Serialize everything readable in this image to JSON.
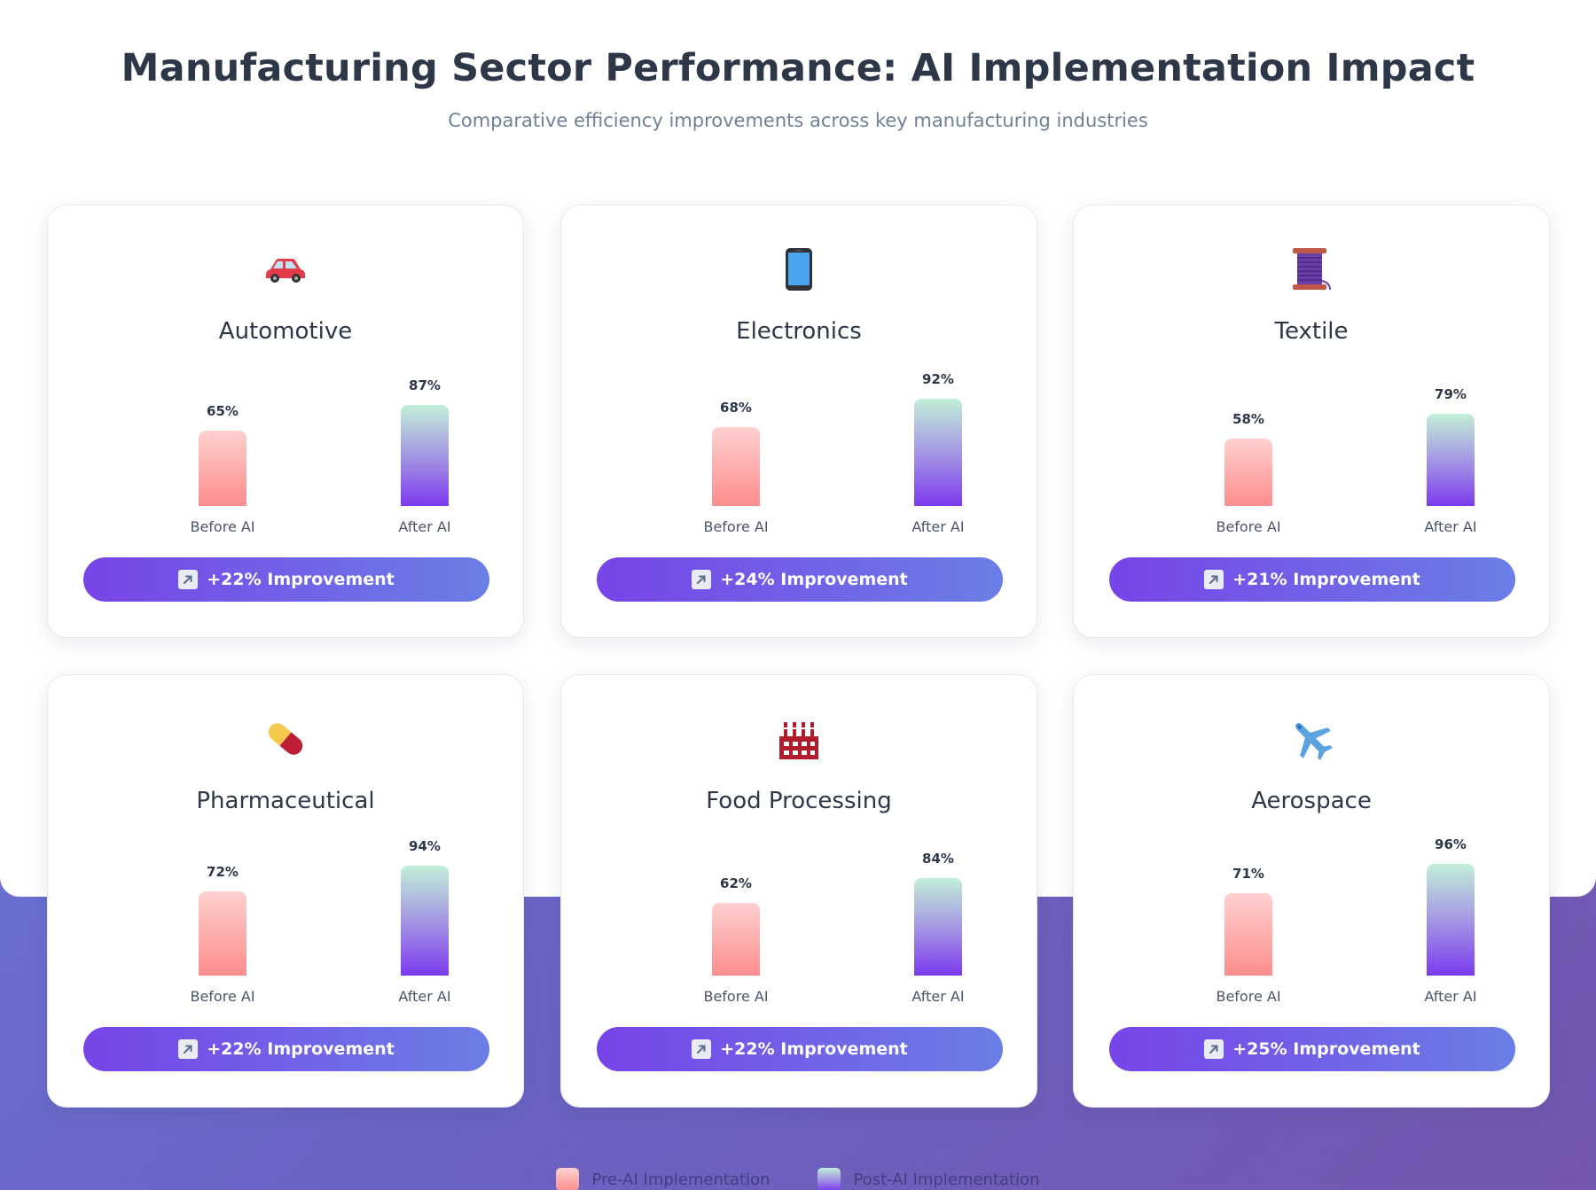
{
  "header": {
    "title": "Manufacturing Sector Performance: AI Implementation Impact",
    "subtitle": "Comparative efficiency improvements across key manufacturing industries"
  },
  "chart_data": {
    "type": "bar",
    "title": "Manufacturing Sector Performance: AI Implementation Impact",
    "subtitle": "Comparative efficiency improvements across key manufacturing industries",
    "unit": "%",
    "ylim": [
      0,
      100
    ],
    "categories": [
      "Before AI",
      "After AI"
    ],
    "legend": {
      "position": "bottom",
      "entries": [
        "Pre-AI Implementation",
        "Post-AI Implementation"
      ]
    },
    "sectors": [
      {
        "name": "Automotive",
        "icon": "car-icon",
        "before": 65,
        "after": 87,
        "before_label": "65%",
        "after_label": "87%",
        "improvement": "+22% Improvement"
      },
      {
        "name": "Electronics",
        "icon": "smartphone-icon",
        "before": 68,
        "after": 92,
        "before_label": "68%",
        "after_label": "92%",
        "improvement": "+24% Improvement"
      },
      {
        "name": "Textile",
        "icon": "thread-spool-icon",
        "before": 58,
        "after": 79,
        "before_label": "58%",
        "after_label": "79%",
        "improvement": "+21% Improvement"
      },
      {
        "name": "Pharmaceutical",
        "icon": "pill-icon",
        "before": 72,
        "after": 94,
        "before_label": "72%",
        "after_label": "94%",
        "improvement": "+22% Improvement"
      },
      {
        "name": "Food Processing",
        "icon": "factory-icon",
        "before": 62,
        "after": 84,
        "before_label": "62%",
        "after_label": "84%",
        "improvement": "+22% Improvement"
      },
      {
        "name": "Aerospace",
        "icon": "airplane-icon",
        "before": 71,
        "after": 96,
        "before_label": "71%",
        "after_label": "96%",
        "improvement": "+25% Improvement"
      }
    ]
  },
  "colors": {
    "before_top": "#ffd0d0",
    "before_bottom": "#fd8d8d",
    "after_top": "#c2efd8",
    "after_bottom": "#7c3aed",
    "badge_start": "#7744e8",
    "badge_end": "#6b7ee6"
  }
}
